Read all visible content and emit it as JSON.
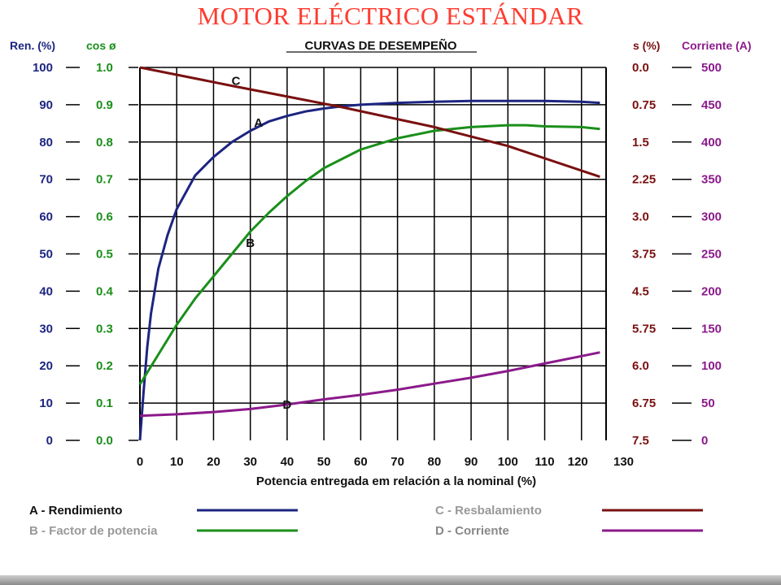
{
  "slide": {
    "title": "MOTOR ELÉCTRICO ESTÁNDAR"
  },
  "chart_data": {
    "type": "line",
    "title": "CURVAS DE DESEMPEÑO",
    "xlabel": "Potencia entregada em relación a la nominal (%)",
    "xlim": [
      0,
      130
    ],
    "x_ticks": [
      "0",
      "10",
      "20",
      "30",
      "40",
      "50",
      "60",
      "70",
      "80",
      "90",
      "100",
      "110",
      "120",
      "130"
    ],
    "grid": true,
    "axes": [
      {
        "key": "ren",
        "label": "Ren. (%)",
        "color": "#1c2580",
        "ticks": [
          "0",
          "10",
          "20",
          "30",
          "40",
          "50",
          "60",
          "70",
          "80",
          "90",
          "100"
        ]
      },
      {
        "key": "cos",
        "label": "cos ø",
        "color": "#1a8f1a",
        "ticks": [
          "0.0",
          "0.1",
          "0.2",
          "0.3",
          "0.4",
          "0.5",
          "0.6",
          "0.7",
          "0.8",
          "0.9",
          "1.0"
        ]
      },
      {
        "key": "slip",
        "label": "s (%)",
        "color": "#7a1010",
        "ticks": [
          "7.5",
          "6.75",
          "6.0",
          "5.75",
          "4.5",
          "3.75",
          "3.0",
          "2.25",
          "1.5",
          "0.75",
          "0.0"
        ]
      },
      {
        "key": "current",
        "label": "Corriente (A)",
        "color": "#8b1a8b",
        "ticks": [
          "0",
          "50",
          "100",
          "150",
          "200",
          "250",
          "300",
          "350",
          "400",
          "450",
          "500"
        ]
      }
    ],
    "series": [
      {
        "name": "A",
        "legend": "A - Rendimiento",
        "axis": "ren",
        "color": "#1c2580",
        "x": [
          0,
          1,
          2,
          3,
          5,
          7.5,
          10,
          15,
          20,
          25,
          30,
          35,
          40,
          45,
          50,
          55,
          60,
          70,
          80,
          90,
          100,
          110,
          120,
          125
        ],
        "values": [
          0,
          13,
          25,
          34,
          46,
          55,
          62,
          71,
          76,
          80,
          83,
          85.5,
          87,
          88.2,
          89,
          89.6,
          90,
          90.5,
          90.8,
          91,
          91,
          91,
          90.8,
          90.5
        ]
      },
      {
        "name": "B",
        "legend": "B - Factor de potencia",
        "axis": "cos",
        "color": "#1a8f1a",
        "x": [
          0,
          5,
          10,
          15,
          20,
          25,
          30,
          35,
          40,
          45,
          50,
          60,
          70,
          80,
          90,
          100,
          105,
          110,
          120,
          125
        ],
        "values": [
          0.15,
          0.23,
          0.31,
          0.38,
          0.44,
          0.5,
          0.56,
          0.61,
          0.655,
          0.695,
          0.73,
          0.78,
          0.81,
          0.83,
          0.84,
          0.845,
          0.845,
          0.842,
          0.84,
          0.835
        ]
      },
      {
        "name": "C",
        "legend": "C - Resbalamiento",
        "axis": "slip",
        "color": "#7a1010",
        "x": [
          0,
          25,
          55,
          80,
          100,
          125
        ],
        "values": [
          0,
          0.37,
          0.8,
          1.2,
          1.58,
          2.2
        ]
      },
      {
        "name": "D",
        "legend": "D - Corriente",
        "axis": "current",
        "color": "#8b1a8b",
        "x": [
          0,
          10,
          20,
          30,
          40,
          50,
          60,
          70,
          80,
          90,
          100,
          110,
          120,
          125
        ],
        "values": [
          33,
          35,
          38,
          42,
          48,
          55,
          61,
          68,
          76,
          84,
          93,
          103,
          113,
          118
        ]
      }
    ]
  }
}
